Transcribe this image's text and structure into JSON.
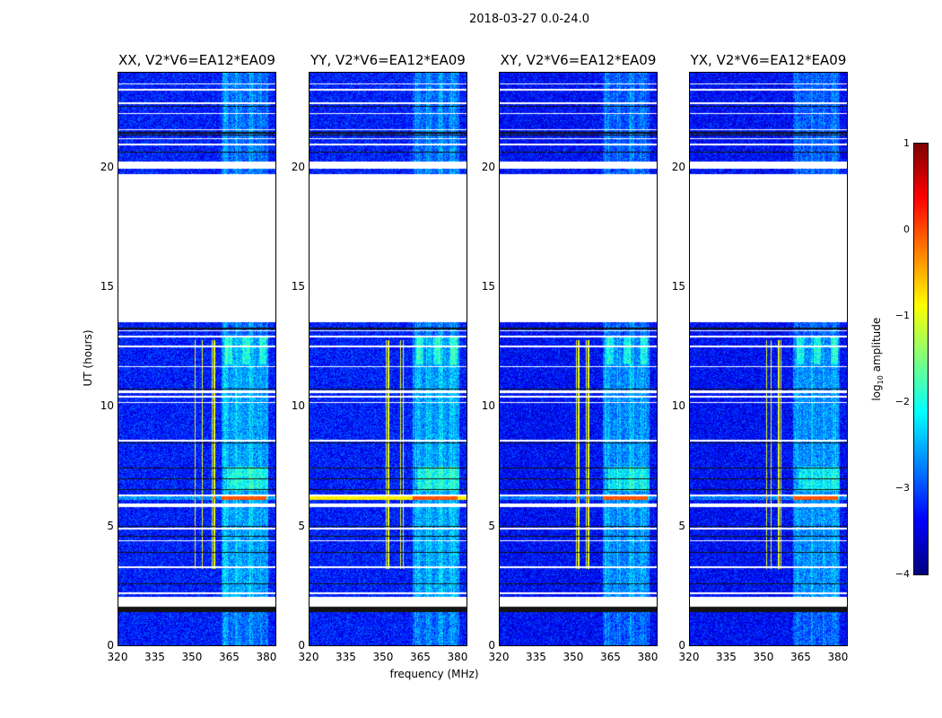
{
  "chart_data": {
    "type": "heatmap",
    "title": "2018-03-27 0.0-24.0",
    "xlabel": "frequency (MHz)",
    "ylabel": "UT (hours)",
    "xlim": [
      320,
      384
    ],
    "ylim": [
      0,
      24
    ],
    "xticks": [
      "320",
      "335",
      "350",
      "365",
      "380"
    ],
    "xtick_values": [
      320,
      335,
      350,
      365,
      380
    ],
    "yticks": [
      "0",
      "5",
      "10",
      "15",
      "20"
    ],
    "ytick_values": [
      0,
      5,
      10,
      15,
      20
    ],
    "colorbar": {
      "label": "log10 amplitude",
      "label_main": "log",
      "label_sub": "10",
      "label_rest": " amplitude",
      "range": [
        -4,
        1
      ],
      "ticks": [
        "1",
        "0",
        "−1",
        "−2",
        "−3",
        "−4"
      ],
      "tick_values": [
        1,
        0,
        -1,
        -2,
        -3,
        -4
      ],
      "colormap": "jet"
    },
    "panels": [
      {
        "title": "XX, V2*V6=EA12*EA09",
        "pol": "XX",
        "strong_band": false,
        "rfi_lines_mhz": [
          351,
          354,
          358,
          359
        ]
      },
      {
        "title": "YY, V2*V6=EA12*EA09",
        "pol": "YY",
        "strong_band": true,
        "rfi_lines_mhz": [
          351,
          352,
          357,
          358
        ]
      },
      {
        "title": "XY, V2*V6=EA12*EA09",
        "pol": "XY",
        "strong_band": false,
        "rfi_lines_mhz": [
          351,
          352,
          355,
          356
        ]
      },
      {
        "title": "YX, V2*V6=EA12*EA09",
        "pol": "YX",
        "strong_band": false,
        "rfi_lines_mhz": [
          351,
          353,
          356,
          357
        ]
      }
    ],
    "blank_hours": [
      [
        13.55,
        19.75
      ],
      [
        20.0,
        20.3
      ],
      [
        1.65,
        2.05
      ],
      [
        5.8,
        5.95
      ],
      [
        8.55,
        8.65
      ],
      [
        10.6,
        10.7
      ],
      [
        21.6,
        21.65
      ]
    ],
    "white_lines_hours": [
      2.2,
      3.3,
      4.4,
      4.9,
      6.3,
      10.2,
      10.45,
      11.7,
      12.55,
      12.95,
      13.2,
      21.0,
      21.25,
      22.3,
      22.75,
      23.3,
      23.55
    ],
    "dark_lines_hours": [
      1.45,
      1.5,
      1.55,
      1.6,
      2.6,
      3.9,
      4.6,
      5.0,
      6.55,
      7.0,
      7.45,
      8.5,
      10.75,
      13.3,
      20.7,
      21.4,
      21.5,
      22.6
    ],
    "bright_band_mhz": [
      362,
      381
    ],
    "active_hours": [
      2.0,
      13.0
    ],
    "strong_row_hours": [
      6.1,
      6.35
    ]
  }
}
